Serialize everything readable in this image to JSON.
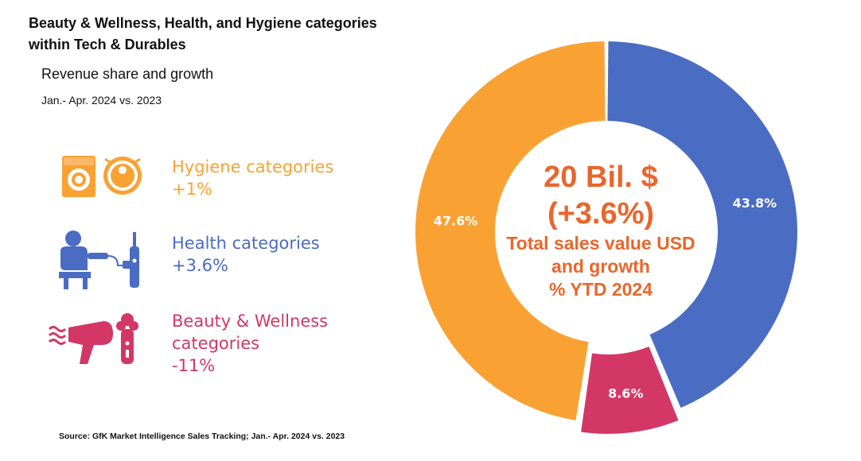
{
  "header": {
    "title_line1": "Beauty & Wellness, Health, and Hygiene categories",
    "title_line2": "within Tech & Durables",
    "subtitle": "Revenue share and growth",
    "period": "Jan.- Apr. 2024 vs. 2023"
  },
  "legend": [
    {
      "name": "Hygiene categories",
      "name_line2": "",
      "growth": "+1%",
      "color": "#F9A233",
      "icon": "washing-machine-and-robot-vacuum"
    },
    {
      "name": "Health categories",
      "name_line2": "",
      "growth": "+3.6%",
      "color": "#4A6CC3",
      "icon": "blood-pressure-and-toothbrush"
    },
    {
      "name": "Beauty & Wellness",
      "name_line2": "categories",
      "growth": "-11%",
      "color": "#D33766",
      "icon": "hair-dryer-and-shaver"
    }
  ],
  "center": {
    "value": "20 Bil. $",
    "growth": "(+3.6%)",
    "line1": "Total sales value USD",
    "line2": "and growth",
    "line3": "% YTD 2024"
  },
  "source": "Source: GfK Market Intelligence Sales Tracking; Jan.- Apr. 2024 vs. 2023",
  "chart_data": {
    "type": "pie",
    "variant": "donut",
    "slices": [
      {
        "category": "Health categories",
        "value": 43.8,
        "label": "43.8%",
        "color": "#4A6CC3"
      },
      {
        "category": "Beauty & Wellness categories",
        "value": 8.6,
        "label": "8.6%",
        "color": "#D33766",
        "exploded": true
      },
      {
        "category": "Hygiene categories",
        "value": 47.6,
        "label": "47.6%",
        "color": "#F9A233"
      }
    ],
    "start_angle_deg": 0,
    "direction": "clockwise"
  }
}
